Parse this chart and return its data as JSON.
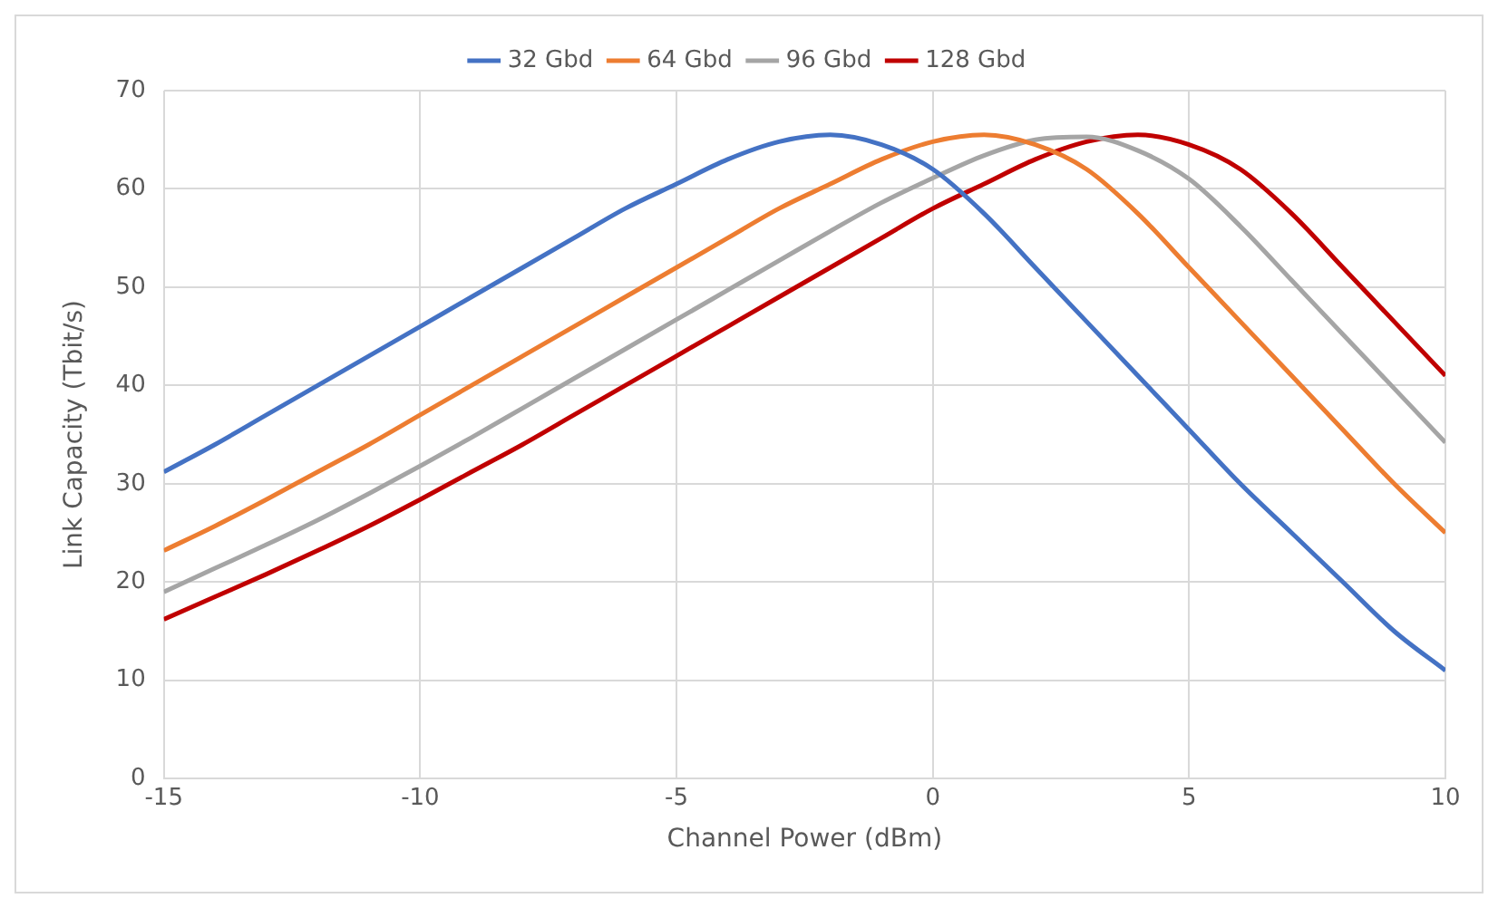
{
  "chart_data": {
    "type": "line",
    "xlabel": "Channel Power (dBm)",
    "ylabel": "Link Capacity (Tbit/s)",
    "x": [
      -15,
      -14,
      -13,
      -12,
      -11,
      -10,
      -9,
      -8,
      -7,
      -6,
      -5,
      -4,
      -3,
      -2,
      -1,
      0,
      1,
      2,
      3,
      4,
      5,
      6,
      7,
      8,
      9,
      10
    ],
    "series": [
      {
        "name": "32 Gbd",
        "color": "#4472c4",
        "values": [
          31.2,
          34,
          37,
          40,
          43,
          46,
          49,
          52,
          55,
          58,
          60.5,
          63,
          64.8,
          65.5,
          64.5,
          62,
          57.5,
          52,
          46.5,
          41,
          35.5,
          30,
          25,
          20,
          15,
          11
        ]
      },
      {
        "name": "64 Gbd",
        "color": "#ed7d31",
        "values": [
          23.2,
          25.7,
          28.4,
          31.2,
          34,
          37,
          40,
          43,
          46,
          49,
          52,
          55,
          58,
          60.5,
          63,
          64.8,
          65.5,
          64.5,
          62,
          57.5,
          52,
          46.5,
          41,
          35.5,
          30,
          25
        ]
      },
      {
        "name": "96 Gbd",
        "color": "#a5a5a5",
        "values": [
          19.0,
          21.4,
          23.8,
          26.3,
          29.0,
          31.8,
          34.7,
          37.7,
          40.7,
          43.7,
          46.7,
          49.7,
          52.7,
          55.7,
          58.6,
          61.1,
          63.4,
          65.0,
          65.3,
          63.9,
          61.0,
          56.2,
          50.7,
          45.2,
          39.7,
          34.2
        ]
      },
      {
        "name": "128 Gbd",
        "color": "#c00000",
        "values": [
          16.2,
          18.5,
          20.8,
          23.2,
          25.7,
          28.4,
          31.2,
          34,
          37,
          40,
          43,
          46,
          49,
          52,
          55,
          58,
          60.5,
          63,
          64.8,
          65.5,
          64.5,
          62,
          57.5,
          52,
          46.5,
          41
        ]
      }
    ],
    "xlim": [
      -15,
      10
    ],
    "xticks": [
      -15,
      -10,
      -5,
      0,
      5,
      10
    ],
    "ylim": [
      0,
      70
    ],
    "yticks": [
      0,
      10,
      20,
      30,
      40,
      50,
      60,
      70
    ],
    "grid": true,
    "legend": "top",
    "marker": "none",
    "line_style": "solid"
  }
}
